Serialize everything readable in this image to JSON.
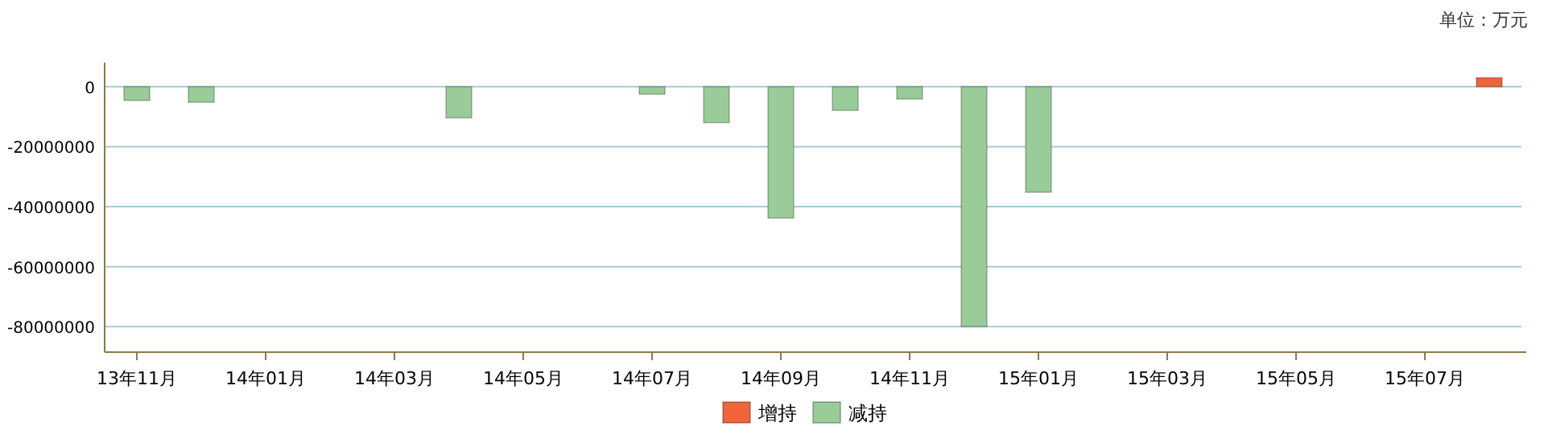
{
  "chart_data": {
    "type": "bar",
    "annotations": [
      "单位：万元"
    ],
    "categories": [
      "13年11月",
      null,
      "14年01月",
      null,
      "14年03月",
      null,
      "14年05月",
      null,
      "14年07月",
      null,
      "14年09月",
      null,
      "14年11月",
      null,
      "15年01月",
      null,
      "15年03月",
      null,
      "15年05月",
      null,
      "15年07月",
      null
    ],
    "series": [
      {
        "name": "增持",
        "color": "#f0643a",
        "values": [
          null,
          null,
          null,
          null,
          null,
          null,
          null,
          null,
          null,
          null,
          null,
          null,
          null,
          null,
          null,
          null,
          null,
          null,
          null,
          null,
          null,
          3000000
        ]
      },
      {
        "name": "减持",
        "color": "#99cc99",
        "values": [
          -4600000,
          -5200000,
          null,
          null,
          null,
          -10400000,
          null,
          null,
          -2500000,
          -12000000,
          -43800000,
          -7900000,
          -4100000,
          -80000000,
          -35200000,
          null,
          null,
          null,
          null,
          null,
          null,
          null
        ]
      }
    ],
    "stacked": true,
    "ylim": [
      -88500000,
      8000000
    ],
    "yticks": [
      0,
      -20000000,
      -40000000,
      -60000000,
      -80000000
    ],
    "grid": "y",
    "legend": "bottom"
  }
}
